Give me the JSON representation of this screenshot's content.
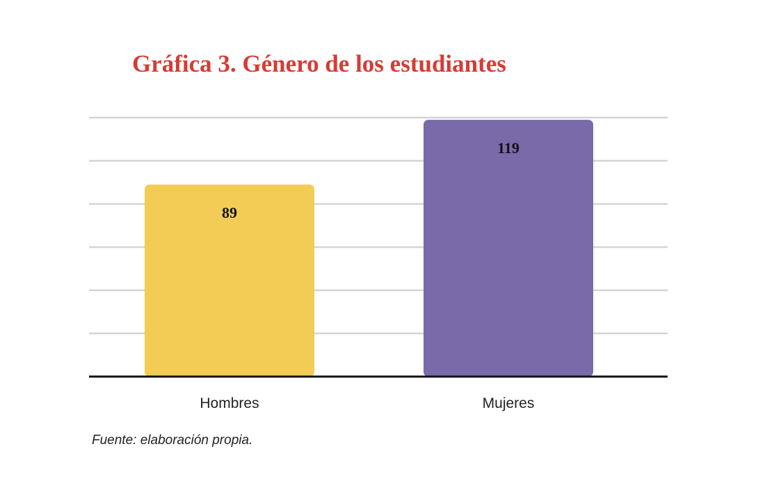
{
  "chart_data": {
    "type": "bar",
    "title": "Gráfica 3. Género de los estudiantes",
    "categories": [
      "Hombres",
      "Mujeres"
    ],
    "values": [
      89,
      119
    ],
    "colors": [
      "#f2cc55",
      "#7a6aaa"
    ],
    "xlabel": "",
    "ylabel": "",
    "ylim": [
      0,
      120
    ],
    "grid": true,
    "legend": "none",
    "source": "Fuente: elaboración propia."
  }
}
